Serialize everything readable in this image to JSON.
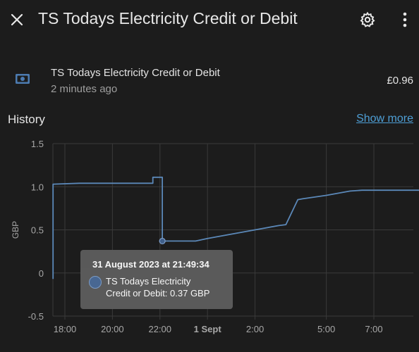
{
  "dialog": {
    "title": "TS Todays Electricity Credit or Debit",
    "close_icon": "close-icon",
    "settings_icon": "gear-icon",
    "menu_icon": "more-vertical-icon"
  },
  "entity": {
    "icon": "cash-icon",
    "name": "TS Todays Electricity Credit or Debit",
    "last_changed": "2 minutes ago",
    "state": "£0.96"
  },
  "history": {
    "title": "History",
    "show_more": "Show more"
  },
  "tooltip": {
    "date": "31 August 2023 at 21:49:34",
    "line1": "TS Todays Electricity",
    "line2": "Credit or Debit: 0.37 GBP"
  },
  "colors": {
    "background": "#1c1c1c",
    "line": "#5b88b8",
    "link": "#4e9fd6"
  },
  "chart_data": {
    "type": "line",
    "ylabel": "GBP",
    "ylim": [
      -0.5,
      1.5
    ],
    "yticks": [
      "1.5",
      "1.0",
      "0.5",
      "0",
      "-0.5"
    ],
    "xticks": [
      {
        "label": "18:00",
        "t": 0
      },
      {
        "label": "20:00",
        "t": 2
      },
      {
        "label": "22:00",
        "t": 4
      },
      {
        "label": "1 Sept",
        "t": 6,
        "bold": true
      },
      {
        "label": "2:00",
        "t": 8
      },
      {
        "label": "5:00",
        "t": 11
      },
      {
        "label": "7:00",
        "t": 13
      }
    ],
    "grid": true,
    "series": [
      {
        "values": [
          [
            -0.5,
            -0.07
          ],
          [
            -0.5,
            1.03
          ],
          [
            0.6,
            1.04
          ],
          [
            3.5,
            1.04
          ],
          [
            3.7,
            1.04
          ],
          [
            3.7,
            1.11
          ],
          [
            4.1,
            1.11
          ],
          [
            4.1,
            0.37
          ],
          [
            4.8,
            0.37
          ],
          [
            5.5,
            0.37
          ],
          [
            6.0,
            0.4
          ],
          [
            7.0,
            0.45
          ],
          [
            8.0,
            0.5
          ],
          [
            9.0,
            0.55
          ],
          [
            9.3,
            0.56
          ],
          [
            9.8,
            0.85
          ],
          [
            10.0,
            0.86
          ],
          [
            11.0,
            0.9
          ],
          [
            12.0,
            0.95
          ],
          [
            12.5,
            0.96
          ],
          [
            14.0,
            0.96
          ],
          [
            15.6,
            0.96
          ]
        ]
      }
    ],
    "highlight": {
      "t": 4.1,
      "value": 0.37
    }
  }
}
